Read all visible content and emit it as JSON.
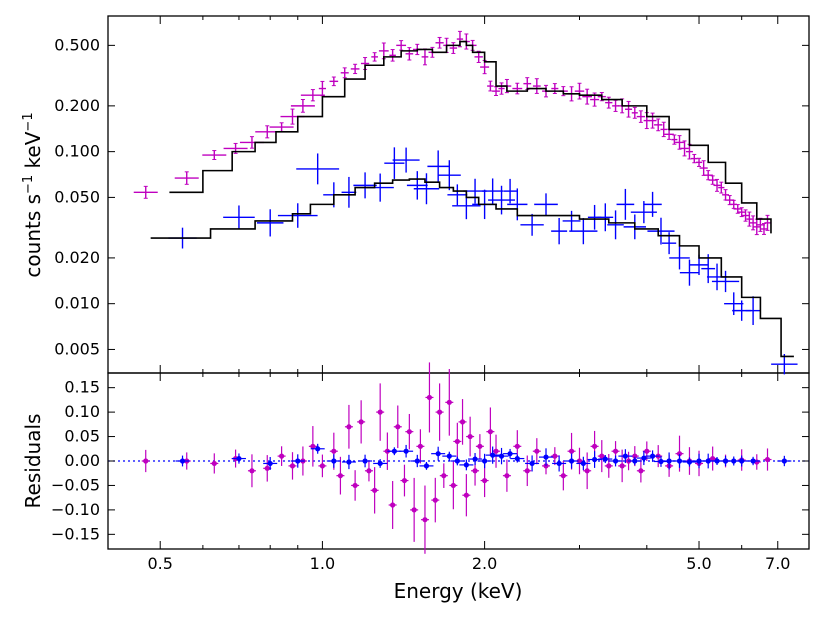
{
  "chart_data": [
    {
      "type": "scatter",
      "panel": "spectrum",
      "yscale": "log",
      "xscale": "log",
      "ylabel_main": "counts s",
      "ylabel_exp1": "−1",
      "ylabel_unit": " keV",
      "ylabel_exp2": "−1",
      "ylim": [
        0.0035,
        0.78
      ],
      "xlim": [
        0.4,
        8.0
      ],
      "yticks": [
        0.005,
        0.01,
        0.02,
        0.05,
        0.1,
        0.2,
        0.5
      ],
      "ytick_labels": [
        "0.005",
        "0.010",
        "0.020",
        "0.050",
        "0.100",
        "0.200",
        "0.500"
      ],
      "series": [
        {
          "name": "magenta spectrum",
          "color": "#bf00bf",
          "x": [
            0.47,
            0.56,
            0.63,
            0.69,
            0.74,
            0.79,
            0.84,
            0.88,
            0.92,
            0.96,
            1.0,
            1.05,
            1.1,
            1.15,
            1.2,
            1.25,
            1.3,
            1.35,
            1.4,
            1.45,
            1.5,
            1.55,
            1.6,
            1.65,
            1.7,
            1.75,
            1.8,
            1.85,
            1.9,
            1.95,
            2.0,
            2.05,
            2.1,
            2.15,
            2.2,
            2.3,
            2.4,
            2.5,
            2.6,
            2.7,
            2.8,
            2.9,
            3.0,
            3.1,
            3.2,
            3.3,
            3.4,
            3.5,
            3.6,
            3.7,
            3.8,
            3.9,
            4.0,
            4.1,
            4.2,
            4.3,
            4.4,
            4.5,
            4.6,
            4.7,
            4.8,
            4.9,
            5.0,
            5.1,
            5.2,
            5.3,
            5.4,
            5.5,
            5.6,
            5.7,
            5.8,
            5.9,
            6.0,
            6.1,
            6.2,
            6.3,
            6.4,
            6.5,
            6.6,
            6.7
          ],
          "y": [
            0.054,
            0.067,
            0.095,
            0.105,
            0.115,
            0.135,
            0.145,
            0.17,
            0.2,
            0.235,
            0.26,
            0.29,
            0.33,
            0.35,
            0.38,
            0.42,
            0.46,
            0.43,
            0.5,
            0.44,
            0.47,
            0.42,
            0.45,
            0.52,
            0.5,
            0.48,
            0.55,
            0.53,
            0.5,
            0.42,
            0.36,
            0.27,
            0.25,
            0.26,
            0.27,
            0.26,
            0.28,
            0.27,
            0.25,
            0.26,
            0.25,
            0.24,
            0.25,
            0.23,
            0.22,
            0.23,
            0.21,
            0.2,
            0.2,
            0.19,
            0.18,
            0.17,
            0.16,
            0.16,
            0.15,
            0.14,
            0.13,
            0.12,
            0.115,
            0.105,
            0.1,
            0.09,
            0.085,
            0.078,
            0.07,
            0.065,
            0.06,
            0.058,
            0.052,
            0.048,
            0.045,
            0.042,
            0.04,
            0.038,
            0.036,
            0.034,
            0.032,
            0.033,
            0.031,
            0.034
          ]
        },
        {
          "name": "blue spectrum",
          "color": "#0000ff",
          "x": [
            0.55,
            0.7,
            0.8,
            0.9,
            0.98,
            1.05,
            1.12,
            1.2,
            1.28,
            1.36,
            1.43,
            1.5,
            1.56,
            1.64,
            1.72,
            1.78,
            1.85,
            1.92,
            2.0,
            2.07,
            2.15,
            2.23,
            2.3,
            2.45,
            2.6,
            2.75,
            2.9,
            3.05,
            3.2,
            3.35,
            3.5,
            3.65,
            3.8,
            3.95,
            4.1,
            4.25,
            4.4,
            4.6,
            4.8,
            5.0,
            5.2,
            5.4,
            5.6,
            5.8,
            6.0,
            6.3,
            7.2
          ],
          "y": [
            0.027,
            0.037,
            0.034,
            0.038,
            0.077,
            0.052,
            0.054,
            0.06,
            0.058,
            0.084,
            0.088,
            0.06,
            0.057,
            0.08,
            0.07,
            0.052,
            0.044,
            0.055,
            0.045,
            0.055,
            0.048,
            0.055,
            0.045,
            0.033,
            0.045,
            0.03,
            0.035,
            0.03,
            0.037,
            0.037,
            0.033,
            0.045,
            0.032,
            0.04,
            0.045,
            0.03,
            0.025,
            0.02,
            0.016,
            0.018,
            0.017,
            0.015,
            0.014,
            0.01,
            0.009,
            0.009,
            0.004
          ]
        }
      ],
      "model_lines": [
        {
          "name": "magenta model",
          "x": [
            0.52,
            0.6,
            0.68,
            0.75,
            0.82,
            0.9,
            1.0,
            1.1,
            1.2,
            1.3,
            1.4,
            1.5,
            1.6,
            1.7,
            1.8,
            1.85,
            1.9,
            2.0,
            2.1,
            2.2,
            2.3,
            2.4,
            2.6,
            2.8,
            3.0,
            3.3,
            3.6,
            4.0,
            4.4,
            4.8,
            5.2,
            5.6,
            6.0,
            6.4,
            6.8
          ],
          "y": [
            0.054,
            0.075,
            0.1,
            0.115,
            0.135,
            0.17,
            0.23,
            0.3,
            0.37,
            0.42,
            0.46,
            0.47,
            0.45,
            0.5,
            0.53,
            0.5,
            0.45,
            0.39,
            0.27,
            0.25,
            0.25,
            0.26,
            0.25,
            0.24,
            0.235,
            0.22,
            0.2,
            0.17,
            0.14,
            0.11,
            0.085,
            0.062,
            0.046,
            0.036,
            0.029
          ]
        },
        {
          "name": "blue model",
          "x": [
            0.48,
            0.62,
            0.75,
            0.88,
            0.95,
            1.05,
            1.15,
            1.25,
            1.35,
            1.45,
            1.55,
            1.65,
            1.75,
            1.85,
            1.95,
            2.1,
            2.3,
            2.6,
            3.0,
            3.4,
            3.8,
            4.2,
            4.6,
            5.0,
            5.5,
            6.0,
            6.5,
            7.1,
            7.5
          ],
          "y": [
            0.027,
            0.031,
            0.035,
            0.039,
            0.045,
            0.052,
            0.058,
            0.062,
            0.065,
            0.066,
            0.063,
            0.058,
            0.055,
            0.05,
            0.045,
            0.042,
            0.038,
            0.038,
            0.036,
            0.034,
            0.031,
            0.028,
            0.024,
            0.02,
            0.015,
            0.011,
            0.008,
            0.0045,
            0.0045
          ]
        }
      ]
    },
    {
      "type": "scatter",
      "panel": "residuals",
      "ylabel": "Residuals",
      "xlabel": "Energy (keV)",
      "ylim": [
        -0.18,
        0.18
      ],
      "yticks": [
        -0.15,
        -0.1,
        -0.05,
        0.0,
        0.05,
        0.1,
        0.15
      ],
      "ytick_labels": [
        "−0.15",
        "−0.10",
        "−0.05",
        "0.00",
        "0.05",
        "0.10",
        "0.15"
      ],
      "xticks": [
        0.5,
        1.0,
        2.0,
        5.0,
        7.0
      ],
      "xtick_labels": [
        "0.5",
        "1.0",
        "2.0",
        "5.0",
        "7.0"
      ],
      "series": [
        {
          "name": "magenta residuals",
          "color": "#bf00bf",
          "x": [
            0.47,
            0.56,
            0.63,
            0.69,
            0.74,
            0.79,
            0.84,
            0.88,
            0.92,
            0.96,
            1.0,
            1.05,
            1.08,
            1.12,
            1.15,
            1.18,
            1.22,
            1.25,
            1.28,
            1.32,
            1.35,
            1.38,
            1.42,
            1.45,
            1.48,
            1.52,
            1.55,
            1.58,
            1.62,
            1.65,
            1.68,
            1.72,
            1.75,
            1.78,
            1.82,
            1.85,
            1.88,
            1.92,
            1.96,
            2.0,
            2.05,
            2.1,
            2.2,
            2.3,
            2.4,
            2.5,
            2.6,
            2.7,
            2.8,
            2.9,
            3.0,
            3.1,
            3.2,
            3.3,
            3.4,
            3.5,
            3.6,
            3.7,
            3.8,
            3.9,
            4.0,
            4.2,
            4.4,
            4.6,
            4.8,
            5.0,
            5.3,
            5.6,
            6.0,
            6.4,
            6.7
          ],
          "y": [
            0.0,
            0.0,
            -0.005,
            0.005,
            -0.02,
            -0.015,
            0.01,
            -0.01,
            0.0,
            0.03,
            -0.01,
            0.02,
            -0.03,
            0.07,
            -0.05,
            0.08,
            -0.02,
            -0.06,
            0.1,
            0.02,
            -0.09,
            0.07,
            -0.04,
            0.06,
            -0.1,
            0.03,
            -0.12,
            0.13,
            -0.08,
            0.1,
            -0.03,
            0.12,
            -0.05,
            0.04,
            0.08,
            -0.07,
            0.05,
            -0.02,
            0.03,
            -0.04,
            0.06,
            0.02,
            -0.03,
            0.03,
            -0.02,
            0.02,
            -0.01,
            0.01,
            -0.03,
            0.02,
            0.0,
            -0.02,
            0.03,
            0.01,
            -0.01,
            0.02,
            -0.01,
            0.0,
            0.01,
            -0.02,
            0.02,
            0.01,
            -0.01,
            0.015,
            0.0,
            -0.005,
            0.005,
            0.0,
            0.002,
            -0.002,
            0.003
          ]
        },
        {
          "name": "blue residuals",
          "color": "#0000ff",
          "x": [
            0.55,
            0.7,
            0.8,
            0.9,
            0.98,
            1.05,
            1.12,
            1.2,
            1.28,
            1.36,
            1.43,
            1.5,
            1.56,
            1.64,
            1.72,
            1.78,
            1.85,
            1.92,
            2.0,
            2.07,
            2.15,
            2.23,
            2.3,
            2.45,
            2.6,
            2.75,
            2.9,
            3.05,
            3.2,
            3.35,
            3.5,
            3.65,
            3.8,
            3.95,
            4.1,
            4.25,
            4.4,
            4.6,
            4.8,
            5.0,
            5.2,
            5.4,
            5.6,
            5.8,
            6.0,
            6.3,
            7.2
          ],
          "y": [
            0.0,
            0.005,
            -0.005,
            0.0,
            0.025,
            0.0,
            -0.002,
            0.0,
            -0.005,
            0.02,
            0.02,
            0.0,
            -0.01,
            0.015,
            0.01,
            0.0,
            -0.008,
            0.004,
            0.0,
            0.012,
            0.01,
            0.015,
            0.005,
            -0.005,
            0.008,
            -0.005,
            0.0,
            -0.005,
            0.003,
            0.004,
            0.0,
            0.01,
            0.0,
            0.006,
            0.01,
            -0.001,
            0.0,
            0.0,
            -0.002,
            0.0,
            0.0,
            0.0,
            0.0,
            0.0,
            0.0,
            0.0,
            0.0
          ]
        }
      ]
    }
  ]
}
